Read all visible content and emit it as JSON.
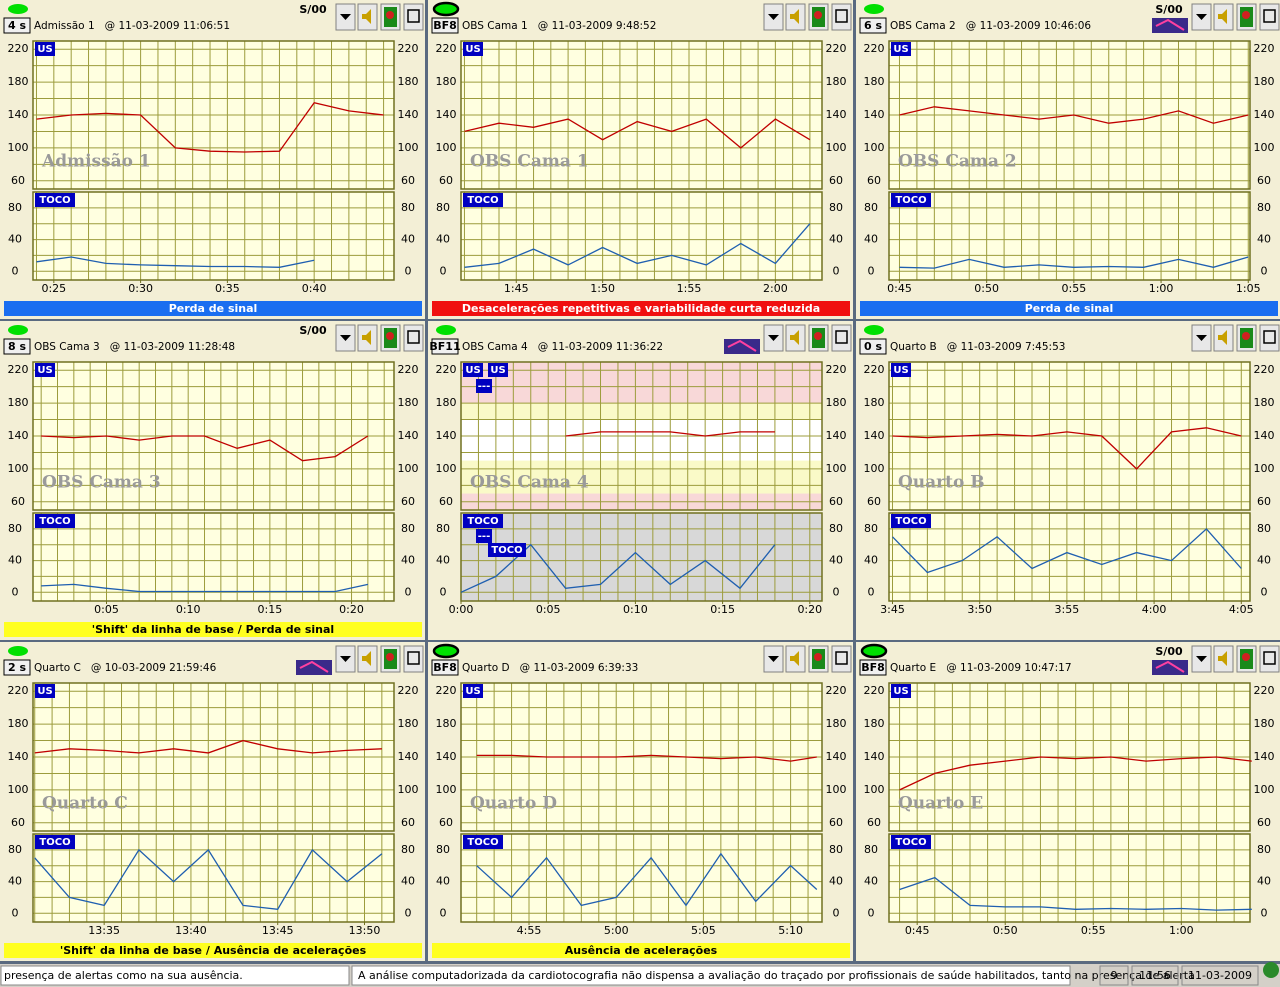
{
  "scales": {
    "fhr_ylim": [
      50,
      230
    ],
    "fhr_yticks": [
      60,
      100,
      140,
      180,
      220
    ],
    "toco_ylim": [
      -11,
      100
    ],
    "toco_yticks": [
      0,
      40,
      80
    ]
  },
  "panels": [
    {
      "badge": "4 s",
      "title": "Admissão 1",
      "timestamp": "@ 11-03-2009 11:06:51",
      "signal_quality": "S/00",
      "led": "plain",
      "icon": false,
      "watermark": "Admissão 1",
      "fhr_label": "US",
      "toco_label": "TOCO",
      "xlim": [
        23.8,
        44.6
      ],
      "xticks": [
        {
          "value": 25,
          "label": "0:25"
        },
        {
          "value": 30,
          "label": "0:30"
        },
        {
          "value": 35,
          "label": "0:35"
        },
        {
          "value": 40,
          "label": "0:40"
        }
      ],
      "x": [
        24,
        26,
        28,
        30,
        32,
        34,
        36,
        38,
        40,
        42,
        44
      ],
      "fhr": [
        135,
        140,
        142,
        140,
        100,
        96,
        95,
        96,
        155,
        145,
        140
      ],
      "toco": [
        12,
        18,
        10,
        8,
        7,
        6,
        6,
        5,
        14,
        null,
        null
      ],
      "alert": {
        "text": "Perda de sinal",
        "color": "#1a6ef0",
        "text_color": "#ffffff"
      }
    },
    {
      "badge": "BF8",
      "title": "OBS Cama 1",
      "timestamp": "@ 11-03-2009 9:48:52",
      "led": "outlined",
      "icon": false,
      "watermark": "OBS Cama 1",
      "fhr_label": "US",
      "toco_label": "TOCO",
      "xlim": [
        101.8,
        122.7
      ],
      "xticks": [
        {
          "value": 105,
          "label": "1:45"
        },
        {
          "value": 110,
          "label": "1:50"
        },
        {
          "value": 115,
          "label": "1:55"
        },
        {
          "value": 120,
          "label": "2:00"
        }
      ],
      "x": [
        102,
        104,
        106,
        108,
        110,
        112,
        114,
        116,
        118,
        120,
        122
      ],
      "fhr": [
        120,
        130,
        125,
        135,
        110,
        132,
        120,
        135,
        100,
        135,
        110
      ],
      "toco": [
        5,
        10,
        28,
        8,
        30,
        10,
        20,
        8,
        35,
        10,
        60
      ],
      "alert": {
        "text": "Desacelerações repetitivas e variabilidade curta reduzida",
        "color": "#f01010",
        "text_color": "#ffffff"
      }
    },
    {
      "badge": "6 s",
      "title": "OBS Cama 2",
      "timestamp": "@ 11-03-2009 10:46:06",
      "signal_quality": "S/00",
      "led": "plain",
      "icon": true,
      "watermark": "OBS Cama 2",
      "fhr_label": "US",
      "toco_label": "TOCO",
      "xlim": [
        44.4,
        65.1
      ],
      "xticks": [
        {
          "value": 45,
          "label": "0:45"
        },
        {
          "value": 50,
          "label": "0:50"
        },
        {
          "value": 55,
          "label": "0:55"
        },
        {
          "value": 60,
          "label": "1:00"
        },
        {
          "value": 65,
          "label": "1:05"
        }
      ],
      "x": [
        45,
        47,
        49,
        51,
        53,
        55,
        57,
        59,
        61,
        63,
        65
      ],
      "fhr": [
        140,
        150,
        145,
        140,
        135,
        140,
        130,
        135,
        145,
        130,
        140
      ],
      "toco": [
        5,
        4,
        15,
        5,
        8,
        5,
        6,
        5,
        15,
        5,
        18
      ],
      "alert": {
        "text": "Perda de sinal",
        "color": "#1a6ef0",
        "text_color": "#ffffff"
      }
    },
    {
      "badge": "8 s",
      "title": "OBS Cama 3",
      "timestamp": "@ 11-03-2009 11:28:48",
      "signal_quality": "S/00",
      "led": "plain",
      "icon": false,
      "watermark": "OBS Cama 3",
      "fhr_label": "US",
      "toco_label": "TOCO",
      "xlim": [
        0.5,
        22.6
      ],
      "xticks": [
        {
          "value": 5,
          "label": "0:05"
        },
        {
          "value": 10,
          "label": "0:10"
        },
        {
          "value": 15,
          "label": "0:15"
        },
        {
          "value": 20,
          "label": "0:20"
        }
      ],
      "x": [
        1,
        3,
        5,
        7,
        9,
        11,
        13,
        15,
        17,
        19,
        21
      ],
      "fhr": [
        140,
        138,
        140,
        135,
        140,
        140,
        125,
        135,
        110,
        115,
        140
      ],
      "toco": [
        8,
        10,
        5,
        1,
        1,
        1,
        1,
        1,
        1,
        1,
        10
      ],
      "alert": {
        "text": "'Shift' da linha de base / Perda de sinal",
        "color": "#ffff20",
        "text_color": "#000000"
      }
    },
    {
      "badge": "BF11",
      "title": "OBS Cama 4",
      "timestamp": "@ 11-03-2009 11:36:22",
      "led": "plain",
      "icon": true,
      "watermark": "OBS Cama 4",
      "fhr_label": "US",
      "toco_label": "TOCO",
      "extra_badges": [
        "US",
        "---",
        "---",
        "TOCO"
      ],
      "zones": [
        {
          "from": 180,
          "to": 230,
          "color": "#f8d8d8"
        },
        {
          "from": 160,
          "to": 180,
          "color": "#fafac8"
        },
        {
          "from": 110,
          "to": 160,
          "color": "#ffffff"
        },
        {
          "from": 70,
          "to": 110,
          "color": "#fafac8"
        },
        {
          "from": 50,
          "to": 70,
          "color": "#f8d8d8"
        }
      ],
      "toco_bg": "#d8d8d8",
      "xlim": [
        0,
        20.7
      ],
      "xticks": [
        {
          "value": 0,
          "label": "0:00"
        },
        {
          "value": 5,
          "label": "0:05"
        },
        {
          "value": 10,
          "label": "0:10"
        },
        {
          "value": 15,
          "label": "0:15"
        },
        {
          "value": 20,
          "label": "0:20"
        }
      ],
      "x": [
        0,
        2,
        4,
        6,
        8,
        10,
        12,
        14,
        16,
        18,
        20
      ],
      "fhr": [
        null,
        null,
        null,
        140,
        145,
        145,
        145,
        140,
        145,
        145,
        null
      ],
      "toco": [
        0,
        20,
        60,
        5,
        10,
        50,
        10,
        40,
        5,
        60,
        null
      ]
    },
    {
      "badge": "0 s",
      "title": "Quarto B",
      "timestamp": "@ 11-03-2009 7:45:53",
      "led": "plain",
      "icon": false,
      "watermark": "Quarto B",
      "fhr_label": "US",
      "toco_label": "TOCO",
      "xlim": [
        224.8,
        245.5
      ],
      "xticks": [
        {
          "value": 225,
          "label": "3:45"
        },
        {
          "value": 230,
          "label": "3:50"
        },
        {
          "value": 235,
          "label": "3:55"
        },
        {
          "value": 240,
          "label": "4:00"
        },
        {
          "value": 245,
          "label": "4:05"
        }
      ],
      "x": [
        225,
        227,
        229,
        231,
        233,
        235,
        237,
        239,
        241,
        243,
        245
      ],
      "fhr": [
        140,
        138,
        140,
        142,
        140,
        145,
        140,
        100,
        145,
        150,
        140
      ],
      "toco": [
        70,
        25,
        40,
        70,
        30,
        50,
        35,
        50,
        40,
        80,
        30
      ]
    },
    {
      "badge": "2 s",
      "title": "Quarto C",
      "timestamp": "@ 10-03-2009 21:59:46",
      "led": "plain",
      "icon": true,
      "watermark": "Quarto C",
      "fhr_label": "US",
      "toco_label": "TOCO",
      "xlim": [
        810.9,
        831.7
      ],
      "xticks": [
        {
          "value": 815,
          "label": "13:35"
        },
        {
          "value": 820,
          "label": "13:40"
        },
        {
          "value": 825,
          "label": "13:45"
        },
        {
          "value": 830,
          "label": "13:50"
        }
      ],
      "x": [
        811,
        813,
        815,
        817,
        819,
        821,
        823,
        825,
        827,
        829,
        831
      ],
      "fhr": [
        145,
        150,
        148,
        145,
        150,
        145,
        160,
        150,
        145,
        148,
        150
      ],
      "toco": [
        70,
        20,
        10,
        80,
        40,
        80,
        10,
        5,
        80,
        40,
        75
      ],
      "alert": {
        "text": "'Shift' da linha de base / Ausência de acelerações",
        "color": "#ffff20",
        "text_color": "#000000"
      }
    },
    {
      "badge": "BF8",
      "title": "Quarto D",
      "timestamp": "@ 11-03-2009 6:39:33",
      "led": "outlined",
      "icon": false,
      "watermark": "Quarto D",
      "fhr_label": "US",
      "toco_label": "TOCO",
      "xlim": [
        291.1,
        311.8
      ],
      "xticks": [
        {
          "value": 295,
          "label": "4:55"
        },
        {
          "value": 300,
          "label": "5:00"
        },
        {
          "value": 305,
          "label": "5:05"
        },
        {
          "value": 310,
          "label": "5:10"
        }
      ],
      "x": [
        292,
        294,
        296,
        298,
        300,
        302,
        304,
        306,
        308,
        310,
        311.5
      ],
      "fhr": [
        142,
        142,
        140,
        140,
        140,
        142,
        140,
        138,
        140,
        135,
        140
      ],
      "toco": [
        60,
        20,
        70,
        10,
        20,
        70,
        10,
        75,
        15,
        60,
        30
      ],
      "alert": {
        "text": "Ausência de acelerações",
        "color": "#ffff20",
        "text_color": "#000000"
      }
    },
    {
      "badge": "BF8",
      "title": "Quarto E",
      "timestamp": "@ 11-03-2009 10:47:17",
      "signal_quality": "S/00",
      "led": "outlined",
      "icon": true,
      "watermark": "Quarto E",
      "fhr_label": "US",
      "toco_label": "TOCO",
      "xlim": [
        43.4,
        63.9
      ],
      "xticks": [
        {
          "value": 45,
          "label": "0:45"
        },
        {
          "value": 50,
          "label": "0:50"
        },
        {
          "value": 55,
          "label": "0:55"
        },
        {
          "value": 60,
          "label": "1:00"
        }
      ],
      "x": [
        44,
        46,
        48,
        50,
        52,
        54,
        56,
        58,
        60,
        62,
        64
      ],
      "fhr": [
        100,
        120,
        130,
        135,
        140,
        138,
        140,
        135,
        138,
        140,
        135
      ],
      "toco": [
        30,
        45,
        10,
        8,
        8,
        5,
        6,
        5,
        6,
        4,
        5
      ]
    }
  ],
  "status_bar": {
    "scroll_left": "presença de alertas como na sua ausência.",
    "scroll_right": "A análise computadorizada da cardiotocografia não dispensa a avaliação do traçado por profissionais de saúde habilitados, tanto na presença de alerta",
    "count": "9",
    "time": "11:56",
    "date": "11-03-2009"
  }
}
